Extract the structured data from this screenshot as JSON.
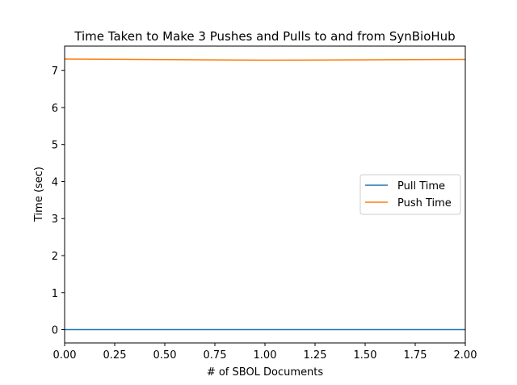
{
  "chart_data": {
    "type": "line",
    "title": "Time Taken to Make 3 Pushes and Pulls to and from SynBioHub",
    "xlabel": "# of SBOL Documents",
    "ylabel": "Time (sec)",
    "xlim": [
      0,
      2
    ],
    "ylim": [
      -0.36,
      7.66
    ],
    "xticks": [
      "0.00",
      "0.25",
      "0.50",
      "0.75",
      "1.00",
      "1.25",
      "1.50",
      "1.75",
      "2.00"
    ],
    "yticks": [
      "0",
      "1",
      "2",
      "3",
      "4",
      "5",
      "6",
      "7"
    ],
    "grid": false,
    "legend_position": "center-right",
    "x": [
      0,
      1,
      2
    ],
    "series": [
      {
        "name": "Pull Time",
        "color": "#1f77b4",
        "values": [
          0.0,
          0.0,
          0.0
        ]
      },
      {
        "name": "Push Time",
        "color": "#ff7f0e",
        "values": [
          7.31,
          7.28,
          7.3
        ]
      }
    ]
  }
}
